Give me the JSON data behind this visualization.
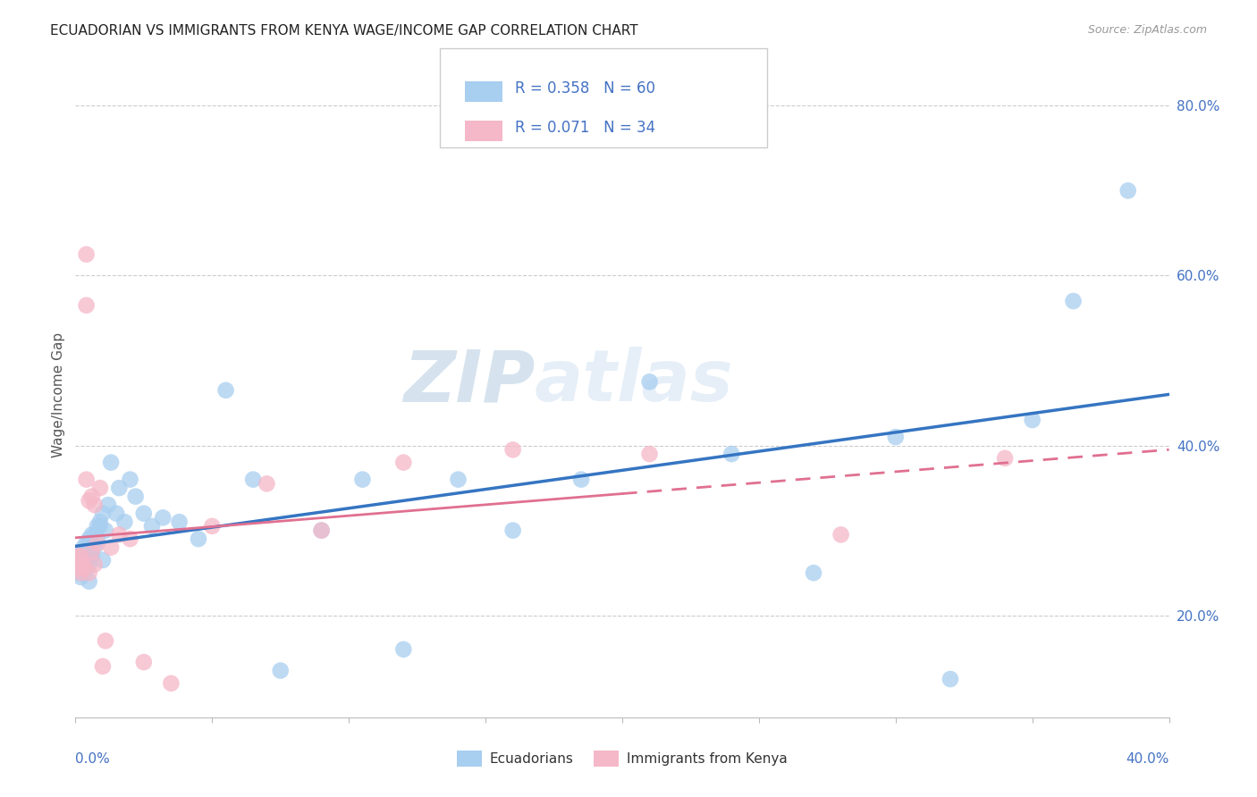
{
  "title": "ECUADORIAN VS IMMIGRANTS FROM KENYA WAGE/INCOME GAP CORRELATION CHART",
  "source": "Source: ZipAtlas.com",
  "ylabel": "Wage/Income Gap",
  "ylabel_right_ticks": [
    0.2,
    0.4,
    0.6,
    0.8
  ],
  "ylabel_right_labels": [
    "20.0%",
    "40.0%",
    "60.0%",
    "80.0%"
  ],
  "xmin": 0.0,
  "xmax": 0.4,
  "ymin": 0.08,
  "ymax": 0.84,
  "watermark": "ZIPatlas",
  "blue_R": 0.358,
  "blue_N": 60,
  "pink_R": 0.071,
  "pink_N": 34,
  "blue_color": "#A8CEF0",
  "blue_line_color": "#3575C2",
  "pink_color": "#F5B8C8",
  "pink_line_color": "#E07090",
  "blue_label": "Ecuadorians",
  "pink_label": "Immigrants from Kenya",
  "blue_x": [
    0.001,
    0.001,
    0.001,
    0.002,
    0.002,
    0.002,
    0.002,
    0.003,
    0.003,
    0.003,
    0.003,
    0.003,
    0.004,
    0.004,
    0.004,
    0.004,
    0.005,
    0.005,
    0.005,
    0.005,
    0.006,
    0.006,
    0.007,
    0.007,
    0.008,
    0.008,
    0.009,
    0.009,
    0.01,
    0.01,
    0.011,
    0.012,
    0.013,
    0.015,
    0.016,
    0.018,
    0.02,
    0.022,
    0.025,
    0.028,
    0.032,
    0.038,
    0.045,
    0.055,
    0.065,
    0.075,
    0.09,
    0.105,
    0.12,
    0.14,
    0.16,
    0.185,
    0.21,
    0.24,
    0.27,
    0.3,
    0.32,
    0.35,
    0.365,
    0.385
  ],
  "blue_y": [
    0.265,
    0.27,
    0.25,
    0.275,
    0.26,
    0.255,
    0.245,
    0.27,
    0.26,
    0.275,
    0.28,
    0.255,
    0.265,
    0.285,
    0.27,
    0.255,
    0.29,
    0.26,
    0.275,
    0.24,
    0.295,
    0.27,
    0.295,
    0.28,
    0.305,
    0.29,
    0.31,
    0.305,
    0.32,
    0.265,
    0.3,
    0.33,
    0.38,
    0.32,
    0.35,
    0.31,
    0.36,
    0.34,
    0.32,
    0.305,
    0.315,
    0.31,
    0.29,
    0.465,
    0.36,
    0.135,
    0.3,
    0.36,
    0.16,
    0.36,
    0.3,
    0.36,
    0.475,
    0.39,
    0.25,
    0.41,
    0.125,
    0.43,
    0.57,
    0.7
  ],
  "pink_x": [
    0.001,
    0.001,
    0.001,
    0.002,
    0.002,
    0.002,
    0.003,
    0.003,
    0.004,
    0.004,
    0.004,
    0.005,
    0.005,
    0.006,
    0.006,
    0.007,
    0.007,
    0.008,
    0.009,
    0.01,
    0.011,
    0.013,
    0.016,
    0.02,
    0.025,
    0.035,
    0.05,
    0.07,
    0.09,
    0.12,
    0.16,
    0.21,
    0.28,
    0.34
  ],
  "pink_y": [
    0.265,
    0.27,
    0.255,
    0.27,
    0.26,
    0.25,
    0.26,
    0.255,
    0.565,
    0.625,
    0.36,
    0.335,
    0.25,
    0.34,
    0.275,
    0.33,
    0.26,
    0.285,
    0.35,
    0.14,
    0.17,
    0.28,
    0.295,
    0.29,
    0.145,
    0.12,
    0.305,
    0.355,
    0.3,
    0.38,
    0.395,
    0.39,
    0.295,
    0.385
  ]
}
